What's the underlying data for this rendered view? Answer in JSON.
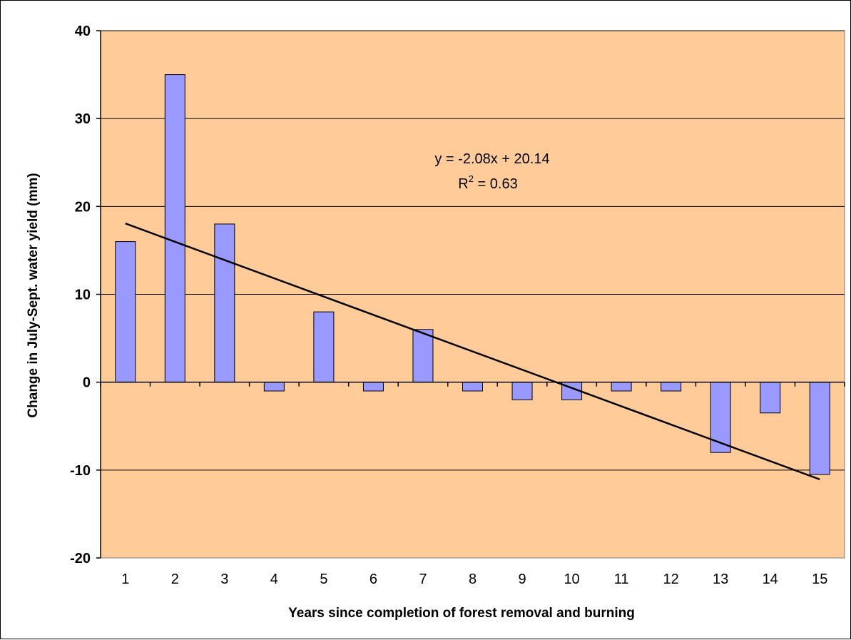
{
  "chart_data": {
    "type": "bar",
    "title": "",
    "xlabel": "Years since completion of forest removal and burning",
    "ylabel": "Change in July-Sept. water yield (mm)",
    "categories": [
      "1",
      "2",
      "3",
      "4",
      "5",
      "6",
      "7",
      "8",
      "9",
      "10",
      "11",
      "12",
      "13",
      "14",
      "15"
    ],
    "values": [
      16,
      35,
      18,
      -1,
      8,
      -1,
      6,
      -1,
      -2,
      -2,
      -1,
      -1,
      -8,
      -3.5,
      -10.5
    ],
    "ylim": [
      -20,
      40
    ],
    "yticks": [
      "40",
      "30",
      "20",
      "10",
      "0",
      "-10",
      "-20"
    ],
    "grid": true,
    "legend": "none",
    "trendline": {
      "type": "linear",
      "equation": "y = -2.08x + 20.14",
      "r2_prefix": "R",
      "r2_sup": "2",
      "r2_suffix": " = 0.63",
      "slope": -2.08,
      "intercept": 20.14
    },
    "colors": {
      "plot_background": "#FFCC99",
      "bar_fill": "#9999FF",
      "bar_stroke": "#000000",
      "grid": "#000000",
      "trendline": "#000000"
    }
  }
}
